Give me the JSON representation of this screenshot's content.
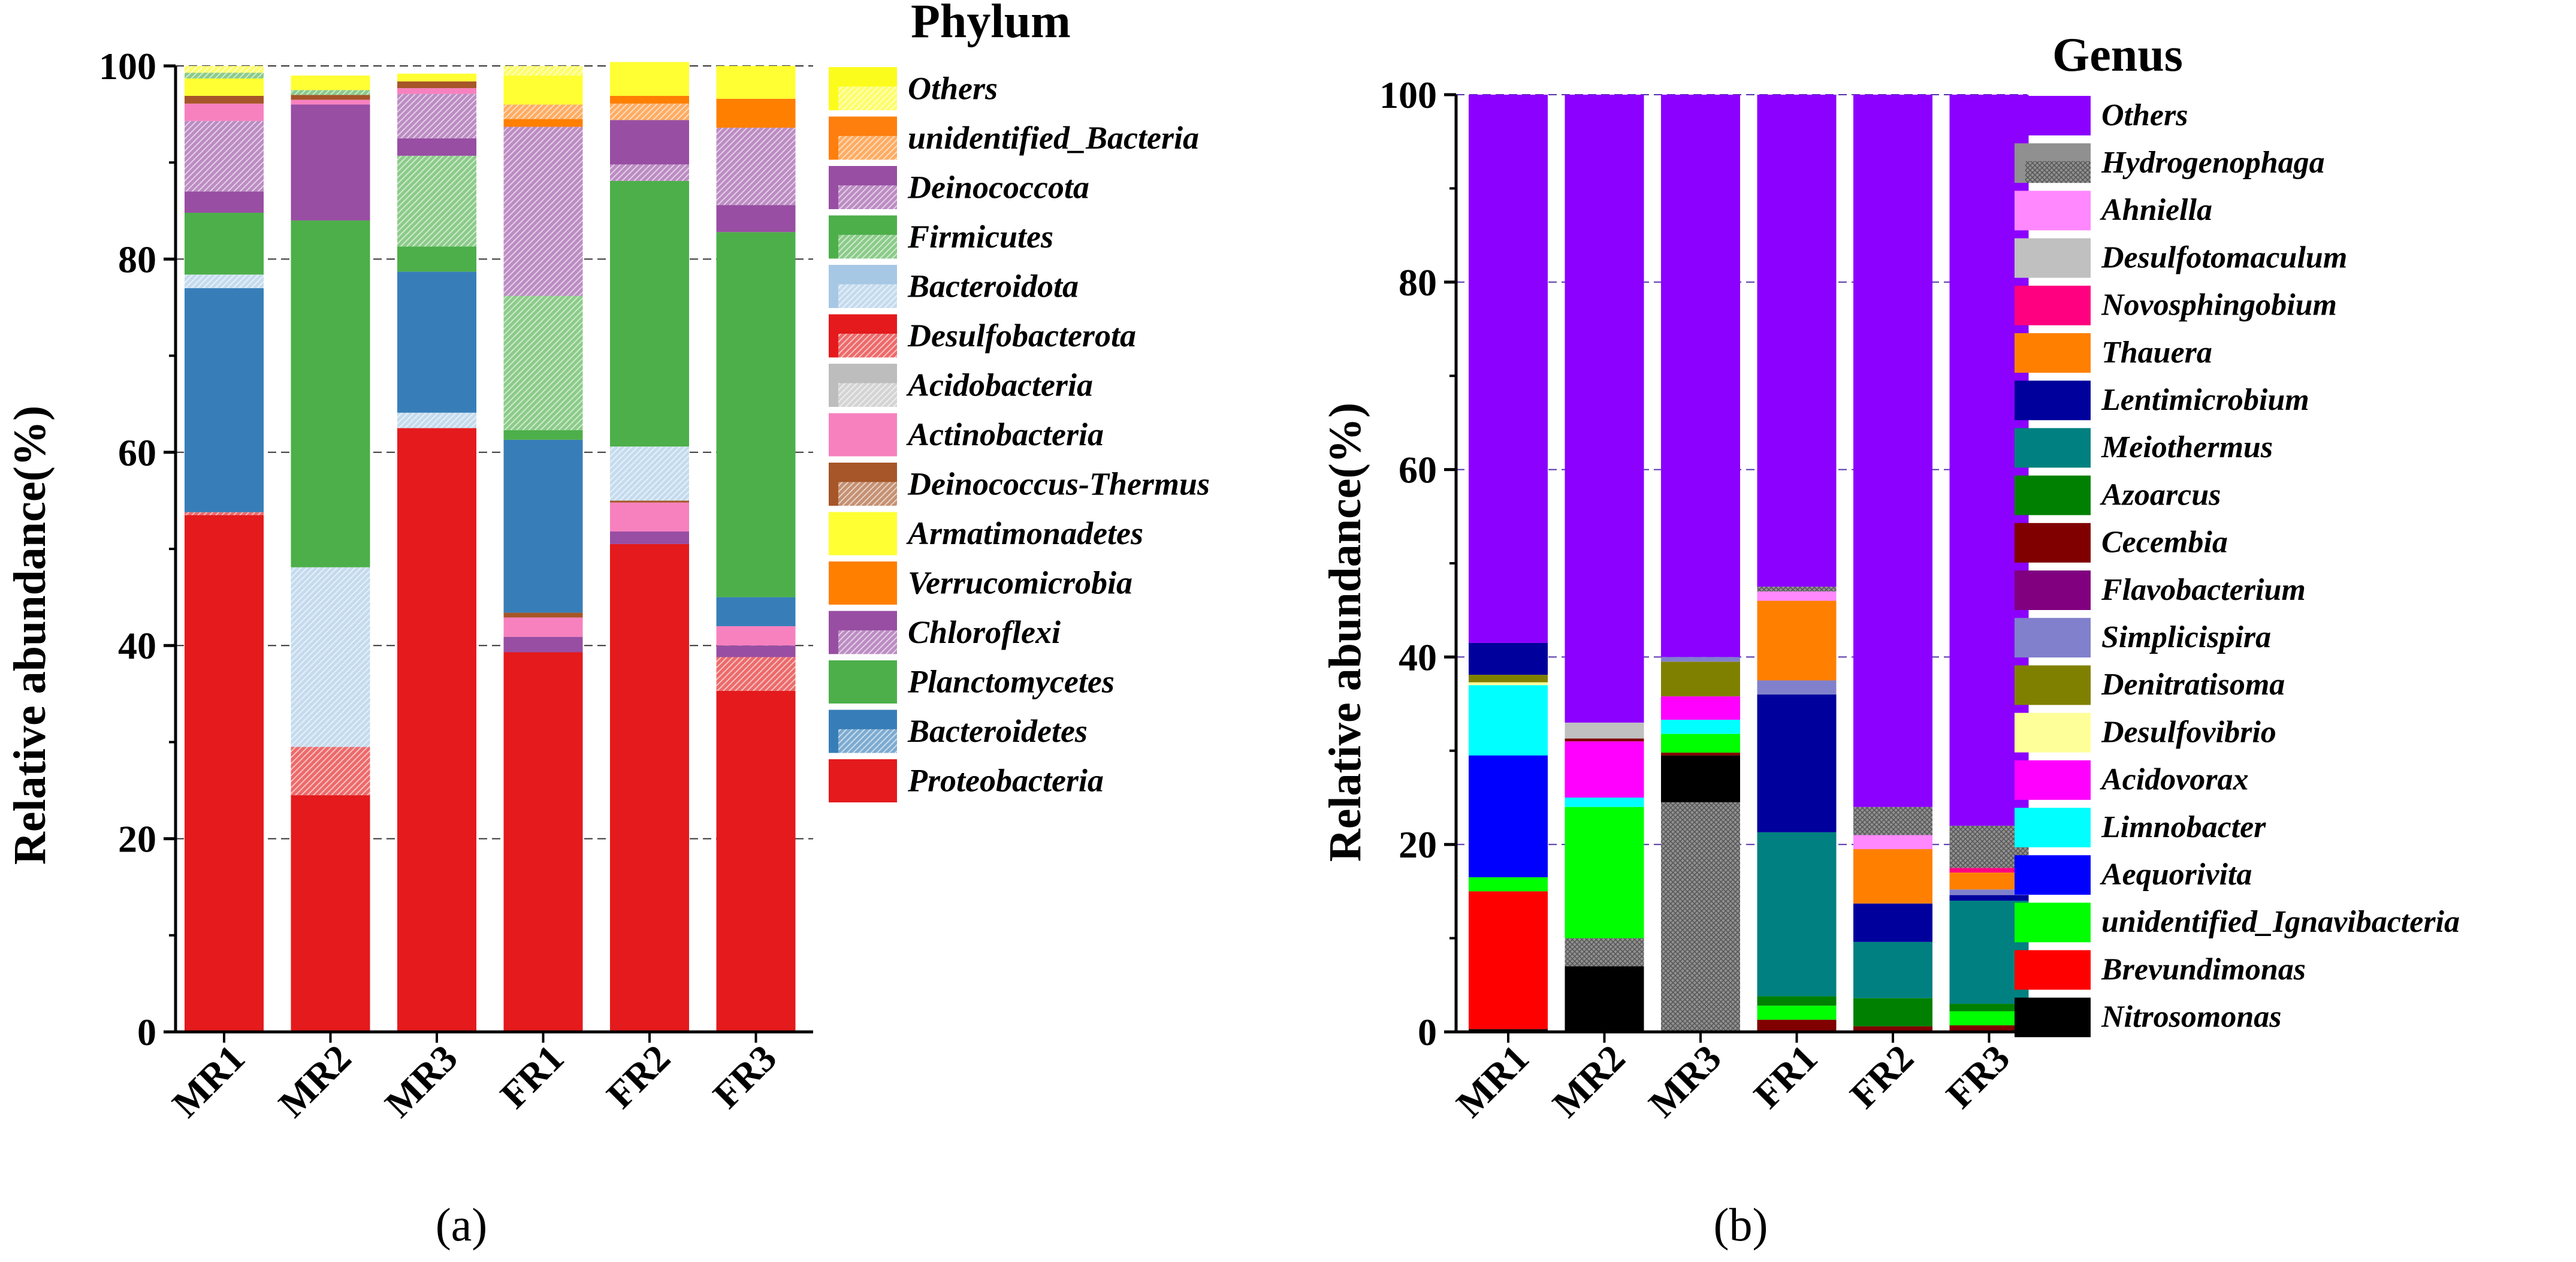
{
  "chart_data": [
    {
      "type": "bar",
      "stacked": true,
      "panel_label": "(a)",
      "legend_title": "Phylum",
      "ylabel": "Relative abundance(%)",
      "xlabel": "",
      "ylim": [
        0,
        100
      ],
      "yticks": [
        0,
        20,
        40,
        60,
        80,
        100
      ],
      "grid": "dashed horizontal",
      "categories": [
        "MR1",
        "MR2",
        "MR3",
        "FR1",
        "FR2",
        "FR3"
      ],
      "legend": [
        "Others",
        "unidentified_Bacteria",
        "Deinococcota",
        "Firmicutes",
        "Bacteroidota",
        "Desulfobacterota",
        "Acidobacteria",
        "Actinobacteria",
        "Deinococcus-Thermus",
        "Armatimonadetes",
        "Verrucomicrobia",
        "Chloroflexi",
        "Planctomycetes",
        "Bacteroidetes",
        "Proteobacteria"
      ],
      "bars": [
        {
          "name": "MR1",
          "segments": [
            {
              "taxon": "Proteobacteria",
              "value": 53.5
            },
            {
              "taxon": "Desulfobacterota",
              "value": 0.3
            },
            {
              "taxon": "Bacteroidetes",
              "value": 23.2
            },
            {
              "taxon": "Bacteroidota",
              "value": 1.4
            },
            {
              "taxon": "Planctomycetes",
              "value": 6.4
            },
            {
              "taxon": "Chloroflexi",
              "value": 2.2
            },
            {
              "taxon": "Deinococcota",
              "value": 7.3
            },
            {
              "taxon": "Actinobacteria",
              "value": 1.8
            },
            {
              "taxon": "Deinococcus-Thermus",
              "value": 0.8
            },
            {
              "taxon": "Armatimonadetes",
              "value": 1.8
            },
            {
              "taxon": "Firmicutes",
              "value": 0.6
            },
            {
              "taxon": "Others",
              "value": 0.7
            }
          ]
        },
        {
          "name": "MR2",
          "segments": [
            {
              "taxon": "Proteobacteria",
              "value": 24.5
            },
            {
              "taxon": "Desulfobacterota",
              "value": 5.0
            },
            {
              "taxon": "Bacteroidota",
              "value": 18.6
            },
            {
              "taxon": "Planctomycetes",
              "value": 35.9
            },
            {
              "taxon": "Chloroflexi",
              "value": 12.0
            },
            {
              "taxon": "Actinobacteria",
              "value": 0.5
            },
            {
              "taxon": "Deinococcus-Thermus",
              "value": 0.5
            },
            {
              "taxon": "Firmicutes",
              "value": 0.5
            },
            {
              "taxon": "Armatimonadetes",
              "value": 1.5
            }
          ]
        },
        {
          "name": "MR3",
          "segments": [
            {
              "taxon": "Proteobacteria",
              "value": 62.5
            },
            {
              "taxon": "Bacteroidota",
              "value": 1.6
            },
            {
              "taxon": "Bacteroidetes",
              "value": 14.6
            },
            {
              "taxon": "Planctomycetes",
              "value": 2.6
            },
            {
              "taxon": "Firmicutes",
              "value": 9.4
            },
            {
              "taxon": "Chloroflexi",
              "value": 1.8
            },
            {
              "taxon": "Deinococcota",
              "value": 4.6
            },
            {
              "taxon": "Actinobacteria",
              "value": 0.6
            },
            {
              "taxon": "Deinococcus-Thermus",
              "value": 0.7
            },
            {
              "taxon": "Armatimonadetes",
              "value": 0.8
            }
          ]
        },
        {
          "name": "FR1",
          "segments": [
            {
              "taxon": "Proteobacteria",
              "value": 39.3
            },
            {
              "taxon": "Chloroflexi",
              "value": 1.6
            },
            {
              "taxon": "Actinobacteria",
              "value": 2.0
            },
            {
              "taxon": "Deinococcus-Thermus",
              "value": 0.5
            },
            {
              "taxon": "Bacteroidetes",
              "value": 17.9
            },
            {
              "taxon": "Planctomycetes",
              "value": 1.0
            },
            {
              "taxon": "Firmicutes",
              "value": 13.9
            },
            {
              "taxon": "Deinococcota",
              "value": 17.5
            },
            {
              "taxon": "Verrucomicrobia",
              "value": 0.8
            },
            {
              "taxon": "unidentified_Bacteria",
              "value": 1.5
            },
            {
              "taxon": "Armatimonadetes",
              "value": 3.0
            },
            {
              "taxon": "Others",
              "value": 1.0
            }
          ]
        },
        {
          "name": "FR2",
          "segments": [
            {
              "taxon": "Proteobacteria",
              "value": 50.5
            },
            {
              "taxon": "Chloroflexi",
              "value": 1.3
            },
            {
              "taxon": "Actinobacteria",
              "value": 3.0
            },
            {
              "taxon": "Deinococcus-Thermus",
              "value": 0.2
            },
            {
              "taxon": "Bacteroidota",
              "value": 5.6
            },
            {
              "taxon": "Planctomycetes",
              "value": 27.5
            },
            {
              "taxon": "Deinococcota",
              "value": 1.7
            },
            {
              "taxon": "Chloroflexi",
              "value": 4.6
            },
            {
              "taxon": "unidentified_Bacteria",
              "value": 1.7
            },
            {
              "taxon": "Verrucomicrobia",
              "value": 0.8
            },
            {
              "taxon": "Armatimonadetes",
              "value": 3.5
            }
          ]
        },
        {
          "name": "FR3",
          "segments": [
            {
              "taxon": "Proteobacteria",
              "value": 35.3
            },
            {
              "taxon": "Desulfobacterota",
              "value": 3.5
            },
            {
              "taxon": "Chloroflexi",
              "value": 1.2
            },
            {
              "taxon": "Actinobacteria",
              "value": 2.0
            },
            {
              "taxon": "Bacteroidetes",
              "value": 3.0
            },
            {
              "taxon": "Planctomycetes",
              "value": 37.8
            },
            {
              "taxon": "Chloroflexi",
              "value": 2.8
            },
            {
              "taxon": "Deinococcota",
              "value": 8.0
            },
            {
              "taxon": "Verrucomicrobia",
              "value": 3.0
            },
            {
              "taxon": "Armatimonadetes",
              "value": 3.4
            }
          ]
        }
      ]
    },
    {
      "type": "bar",
      "stacked": true,
      "panel_label": "(b)",
      "legend_title": "Genus",
      "ylabel": "Relative abundance(%)",
      "xlabel": "",
      "ylim": [
        0,
        100
      ],
      "yticks": [
        0,
        20,
        40,
        60,
        80,
        100
      ],
      "grid": "dashed horizontal",
      "categories": [
        "MR1",
        "MR2",
        "MR3",
        "FR1",
        "FR2",
        "FR3"
      ],
      "legend": [
        "Others",
        "Hydrogenophaga",
        "Ahniella",
        "Desulfotomaculum",
        "Novosphingobium",
        "Thauera",
        "Lentimicrobium",
        "Meiothermus",
        "Azoarcus",
        "Cecembia",
        "Flavobacterium",
        "Simplicispira",
        "Denitratisoma",
        "Desulfovibrio",
        "Acidovorax",
        "Limnobacter",
        "Aequorivita",
        "unidentified_Ignavibacteria",
        "Brevundimonas",
        "Nitrosomonas"
      ],
      "bars": [
        {
          "name": "MR1",
          "segments": [
            {
              "taxon": "Nitrosomonas",
              "value": 0.3
            },
            {
              "taxon": "Brevundimonas",
              "value": 14.7
            },
            {
              "taxon": "unidentified_Ignavibacteria",
              "value": 1.5
            },
            {
              "taxon": "Aequorivita",
              "value": 13.0
            },
            {
              "taxon": "Limnobacter",
              "value": 7.5
            },
            {
              "taxon": "Desulfovibrio",
              "value": 0.3
            },
            {
              "taxon": "Denitratisoma",
              "value": 0.8
            },
            {
              "taxon": "Lentimicrobium",
              "value": 3.4
            },
            {
              "taxon": "Others",
              "value": 58.5
            }
          ]
        },
        {
          "name": "MR2",
          "segments": [
            {
              "taxon": "Nitrosomonas",
              "value": 7.0
            },
            {
              "taxon": "Hydrogenophaga",
              "value": 3.0
            },
            {
              "taxon": "unidentified_Ignavibacteria",
              "value": 14.0
            },
            {
              "taxon": "Limnobacter",
              "value": 1.0
            },
            {
              "taxon": "Acidovorax",
              "value": 6.0
            },
            {
              "taxon": "Cecembia",
              "value": 0.3
            },
            {
              "taxon": "Desulfotomaculum",
              "value": 1.7
            },
            {
              "taxon": "Others",
              "value": 67.0
            }
          ]
        },
        {
          "name": "MR3",
          "segments": [
            {
              "taxon": "Hydrogenophaga",
              "value": 24.5
            },
            {
              "taxon": "Nitrosomonas",
              "value": 5.0
            },
            {
              "taxon": "Cecembia",
              "value": 0.3
            },
            {
              "taxon": "unidentified_Ignavibacteria",
              "value": 2.0
            },
            {
              "taxon": "Limnobacter",
              "value": 1.5
            },
            {
              "taxon": "Acidovorax",
              "value": 2.5
            },
            {
              "taxon": "Denitratisoma",
              "value": 3.7
            },
            {
              "taxon": "Simplicispira",
              "value": 0.5
            },
            {
              "taxon": "Others",
              "value": 60.0
            }
          ]
        },
        {
          "name": "FR1",
          "segments": [
            {
              "taxon": "Cecembia",
              "value": 1.3
            },
            {
              "taxon": "unidentified_Ignavibacteria",
              "value": 1.5
            },
            {
              "taxon": "Azoarcus",
              "value": 1.0
            },
            {
              "taxon": "Meiothermus",
              "value": 17.5
            },
            {
              "taxon": "Lentimicrobium",
              "value": 14.7
            },
            {
              "taxon": "Simplicispira",
              "value": 1.5
            },
            {
              "taxon": "Thauera",
              "value": 8.5
            },
            {
              "taxon": "Ahniella",
              "value": 1.0
            },
            {
              "taxon": "Hydrogenophaga",
              "value": 0.5
            },
            {
              "taxon": "Others",
              "value": 52.5
            }
          ]
        },
        {
          "name": "FR2",
          "segments": [
            {
              "taxon": "Cecembia",
              "value": 0.6
            },
            {
              "taxon": "Azoarcus",
              "value": 3.0
            },
            {
              "taxon": "Meiothermus",
              "value": 6.0
            },
            {
              "taxon": "Lentimicrobium",
              "value": 4.1
            },
            {
              "taxon": "Thauera",
              "value": 5.8
            },
            {
              "taxon": "Ahniella",
              "value": 1.5
            },
            {
              "taxon": "Hydrogenophaga",
              "value": 3.0
            },
            {
              "taxon": "Others",
              "value": 76.0
            }
          ]
        },
        {
          "name": "FR3",
          "segments": [
            {
              "taxon": "Cecembia",
              "value": 0.7
            },
            {
              "taxon": "unidentified_Ignavibacteria",
              "value": 1.5
            },
            {
              "taxon": "Azoarcus",
              "value": 0.8
            },
            {
              "taxon": "Meiothermus",
              "value": 11.0
            },
            {
              "taxon": "Lentimicrobium",
              "value": 0.6
            },
            {
              "taxon": "Simplicispira",
              "value": 0.6
            },
            {
              "taxon": "Thauera",
              "value": 1.8
            },
            {
              "taxon": "Novosphingobium",
              "value": 0.5
            },
            {
              "taxon": "Hydrogenophaga",
              "value": 4.5
            },
            {
              "taxon": "Others",
              "value": 78.0
            }
          ]
        }
      ]
    }
  ],
  "colors": {
    "Others_phylum": "#fcfc1c",
    "unidentified_Bacteria": "#fe7f0e",
    "Deinococcota": "#984ea3",
    "Firmicutes": "#4daf4a",
    "Bacteroidota": "#a6c8e5",
    "Desulfobacterota": "#e41a1c",
    "Acidobacteria": "#bdbdbd",
    "Actinobacteria": "#f781bf",
    "Deinococcus-Thermus": "#a65628",
    "Armatimonadetes": "#ffff33",
    "Verrucomicrobia": "#ff7f00",
    "Chloroflexi": "#984ea3",
    "Planctomycetes": "#4daf4a",
    "Bacteroidetes": "#377eb8",
    "Proteobacteria": "#e41a1c",
    "Others_genus": "#8b00ff",
    "Hydrogenophaga": "#909090",
    "Ahniella": "#ff88ff",
    "Desulfotomaculum": "#c0c0c0",
    "Novosphingobium": "#ff0080",
    "Thauera": "#ff8000",
    "Lentimicrobium": "#00009c",
    "Meiothermus": "#008080",
    "Azoarcus": "#008000",
    "Cecembia": "#800000",
    "Flavobacterium": "#800080",
    "Simplicispira": "#8080cc",
    "Denitratisoma": "#808000",
    "Desulfovibrio": "#ffff99",
    "Acidovorax": "#ff00ff",
    "Limnobacter": "#00ffff",
    "Aequorivita": "#0000ff",
    "unidentified_Ignavibacteria": "#00ff00",
    "Brevundimonas": "#ff0000",
    "Nitrosomonas": "#000000"
  }
}
